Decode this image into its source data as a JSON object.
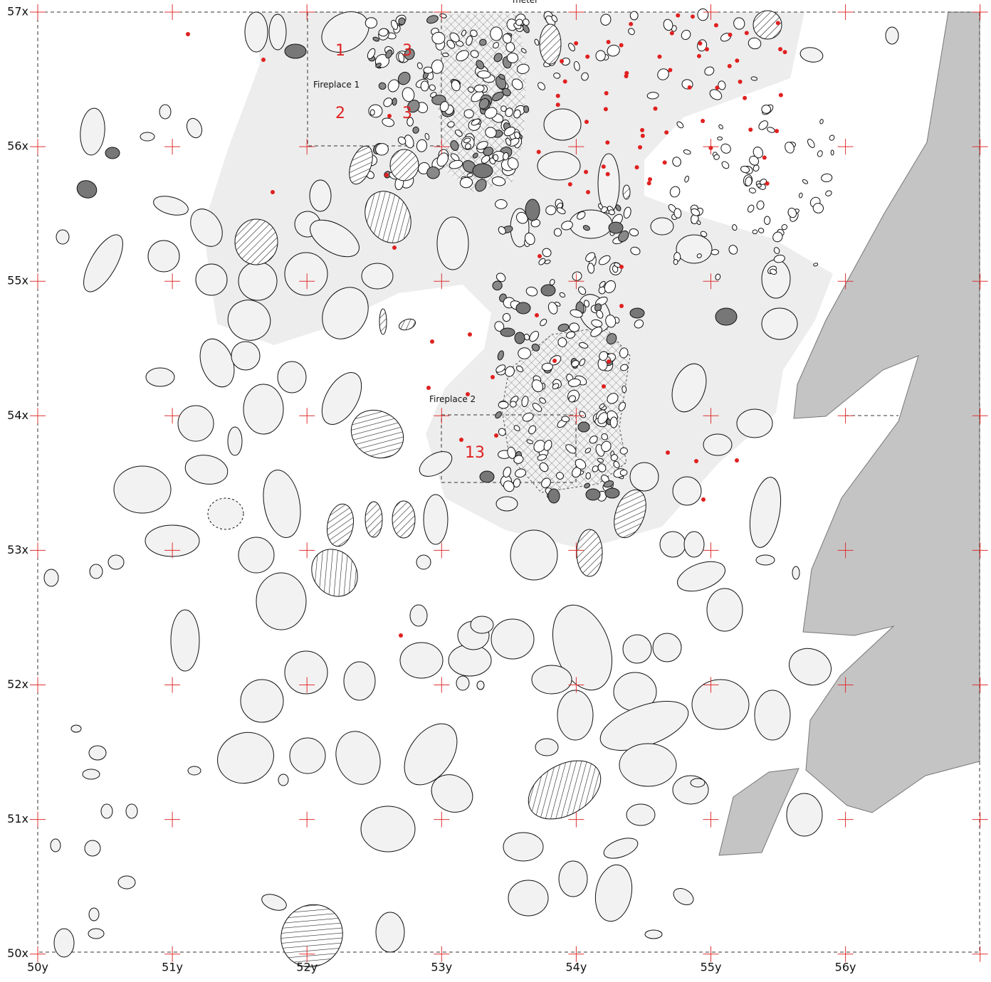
{
  "grid": {
    "rows": [
      "57x",
      "56x",
      "55x",
      "54x",
      "53x",
      "52x",
      "51x",
      "50x"
    ],
    "cols": [
      "50y",
      "51y",
      "52y",
      "53y",
      "54y",
      "55y",
      "56y"
    ]
  },
  "scale_label": "meter",
  "fireplaces": [
    "Fireplace 1",
    "Fireplace 2"
  ],
  "finds": [
    "1",
    "2",
    "3",
    "3",
    "13"
  ]
}
